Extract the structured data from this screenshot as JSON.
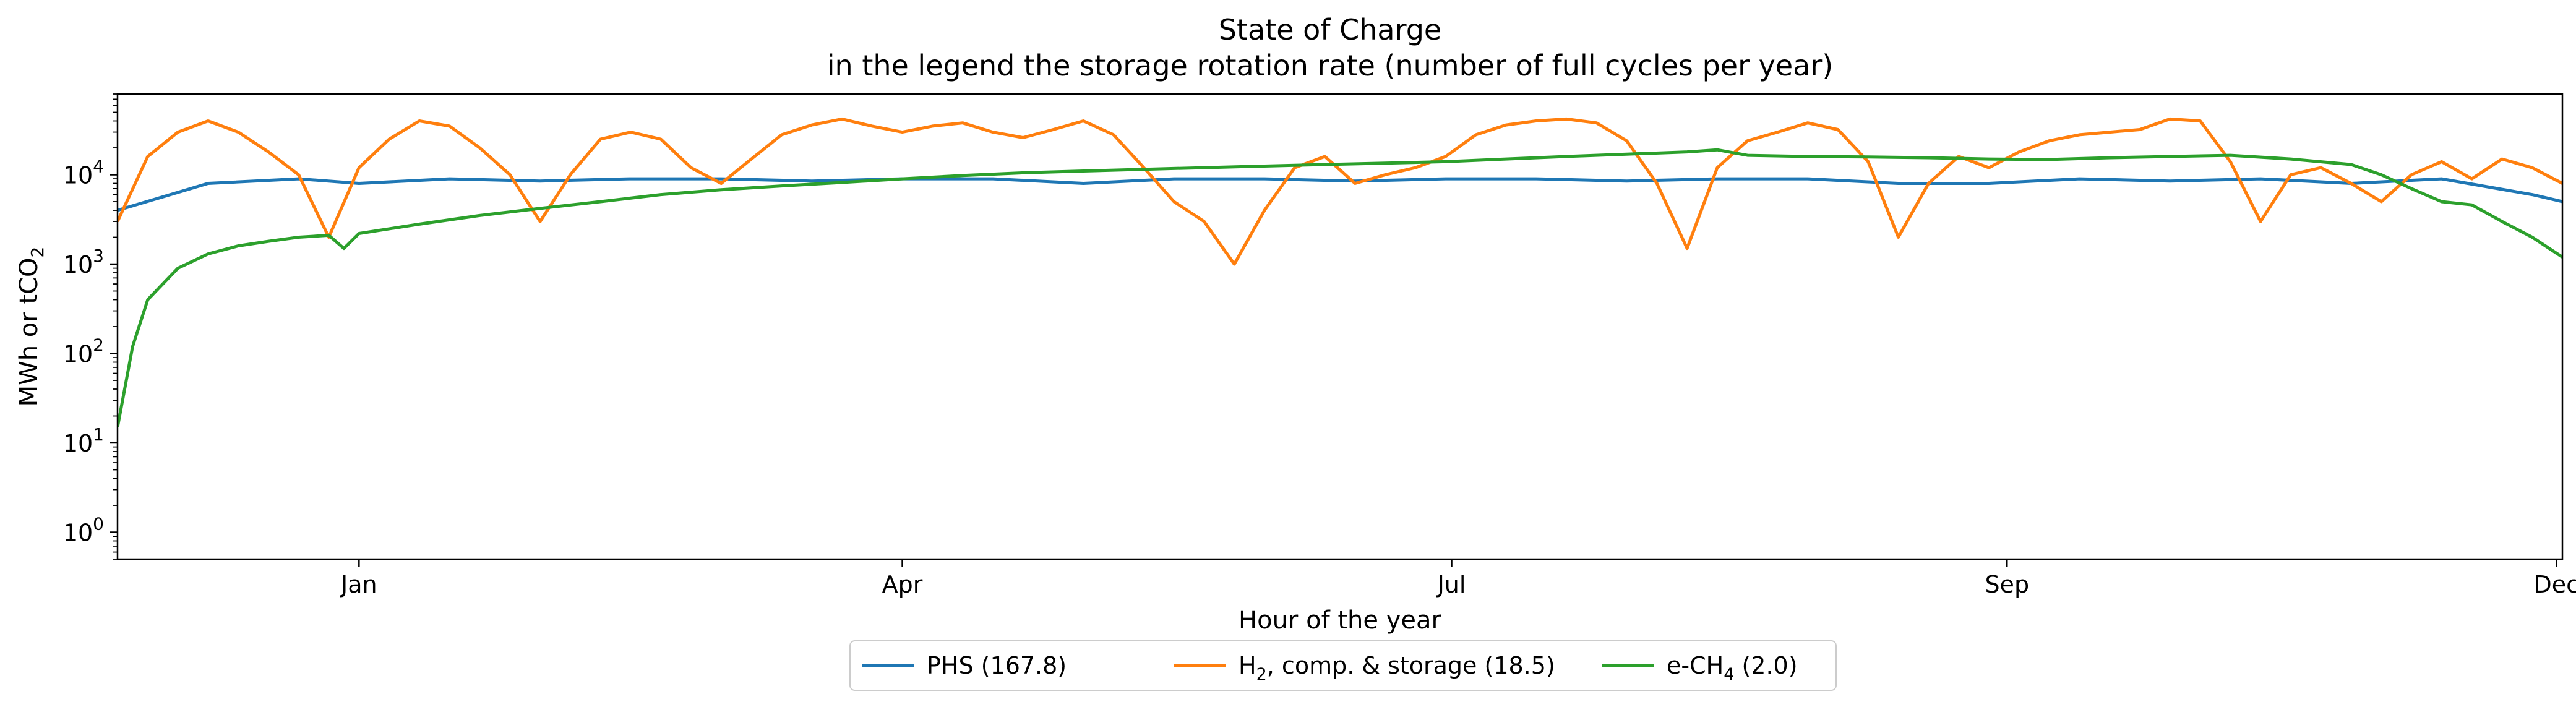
{
  "chart_data": {
    "type": "line",
    "title": "State of Charge",
    "subtitle": "in the legend the storage rotation rate (number of full cycles per year)",
    "xlabel": "Hour of the year",
    "ylabel_main": "MWh or tCO",
    "ylabel_sub": "2",
    "y_scale": "log",
    "ylim": [
      0.5,
      80000
    ],
    "xlim": [
      -960,
      8760
    ],
    "x_ticks": [
      {
        "label": "Jan",
        "value": 0
      },
      {
        "label": "Apr",
        "value": 2160
      },
      {
        "label": "Jul",
        "value": 4344
      },
      {
        "label": "Sep",
        "value": 6552
      },
      {
        "label": "Dec",
        "value": 8736
      }
    ],
    "y_ticks": [
      {
        "base": "10",
        "exp": "0",
        "value": 1
      },
      {
        "base": "10",
        "exp": "1",
        "value": 10
      },
      {
        "base": "10",
        "exp": "2",
        "value": 100
      },
      {
        "base": "10",
        "exp": "3",
        "value": 1000
      },
      {
        "base": "10",
        "exp": "4",
        "value": 10000
      }
    ],
    "legend_position": "below",
    "series": [
      {
        "name": "PHS (167.8)",
        "name_parts": [
          "PHS (167.8)"
        ],
        "color": "#1f77b4",
        "x": [
          -960,
          -600,
          -240,
          0,
          360,
          720,
          1080,
          1440,
          1800,
          2160,
          2520,
          2880,
          3240,
          3600,
          3960,
          4320,
          4680,
          5040,
          5400,
          5760,
          6120,
          6480,
          6840,
          7200,
          7560,
          7920,
          8280,
          8640,
          8760
        ],
        "y": [
          4000,
          8000,
          9000,
          8000,
          9000,
          8500,
          9000,
          9000,
          8500,
          9000,
          9000,
          8000,
          9000,
          9000,
          8500,
          9000,
          9000,
          8500,
          9000,
          9000,
          8000,
          8000,
          9000,
          8500,
          9000,
          8000,
          9000,
          6000,
          5000
        ]
      },
      {
        "name": "H2, comp. & storage (18.5)",
        "name_parts": [
          "H",
          "2",
          ", comp. & storage (18.5)"
        ],
        "color": "#ff7f0e",
        "x": [
          -960,
          -840,
          -720,
          -600,
          -480,
          -360,
          -240,
          -120,
          0,
          120,
          240,
          360,
          480,
          600,
          720,
          840,
          960,
          1080,
          1200,
          1320,
          1440,
          1560,
          1680,
          1800,
          1920,
          2040,
          2160,
          2280,
          2400,
          2520,
          2640,
          2760,
          2880,
          3000,
          3120,
          3240,
          3360,
          3480,
          3600,
          3720,
          3840,
          3960,
          4080,
          4200,
          4320,
          4440,
          4560,
          4680,
          4800,
          4920,
          5040,
          5160,
          5280,
          5400,
          5520,
          5640,
          5760,
          5880,
          6000,
          6120,
          6240,
          6360,
          6480,
          6600,
          6720,
          6840,
          6960,
          7080,
          7200,
          7320,
          7440,
          7560,
          7680,
          7800,
          7920,
          8040,
          8160,
          8280,
          8400,
          8520,
          8640,
          8760
        ],
        "y": [
          3000,
          16000,
          30000,
          40000,
          30000,
          18000,
          10000,
          2000,
          12000,
          25000,
          40000,
          35000,
          20000,
          10000,
          3000,
          10000,
          25000,
          30000,
          25000,
          12000,
          8000,
          15000,
          28000,
          36000,
          42000,
          35000,
          30000,
          35000,
          38000,
          30000,
          26000,
          32000,
          40000,
          28000,
          12000,
          5000,
          3000,
          1000,
          4000,
          12000,
          16000,
          8000,
          10000,
          12000,
          16000,
          28000,
          36000,
          40000,
          42000,
          38000,
          24000,
          8000,
          1500,
          12000,
          24000,
          30000,
          38000,
          32000,
          14000,
          2000,
          8000,
          16000,
          12000,
          18000,
          24000,
          28000,
          30000,
          32000,
          42000,
          40000,
          14000,
          3000,
          10000,
          12000,
          8000,
          5000,
          10000,
          14000,
          9000,
          15000,
          12000,
          8000
        ]
      },
      {
        "name": "e-CH4 (2.0)",
        "name_parts": [
          "e-CH",
          "4",
          " (2.0)"
        ],
        "color": "#2ca02c",
        "x": [
          -960,
          -900,
          -840,
          -720,
          -600,
          -480,
          -360,
          -240,
          -120,
          -60,
          0,
          240,
          480,
          720,
          960,
          1200,
          1440,
          1680,
          1920,
          2160,
          2400,
          2640,
          2880,
          3120,
          3360,
          3600,
          3840,
          4080,
          4320,
          4560,
          4800,
          5040,
          5280,
          5400,
          5520,
          5760,
          6000,
          6240,
          6480,
          6720,
          6960,
          7200,
          7440,
          7680,
          7920,
          8040,
          8160,
          8280,
          8400,
          8520,
          8640,
          8760
        ],
        "y": [
          15,
          120,
          400,
          900,
          1300,
          1600,
          1800,
          2000,
          2100,
          1500,
          2200,
          2800,
          3500,
          4200,
          5000,
          6000,
          6800,
          7500,
          8200,
          9000,
          9800,
          10500,
          11000,
          11500,
          12000,
          12500,
          13000,
          13500,
          14000,
          15000,
          16000,
          17000,
          18000,
          19000,
          16500,
          16000,
          15800,
          15500,
          15000,
          14800,
          15500,
          16000,
          16500,
          15000,
          13000,
          10000,
          7000,
          5000,
          4600,
          3000,
          2000,
          1200
        ]
      }
    ]
  }
}
